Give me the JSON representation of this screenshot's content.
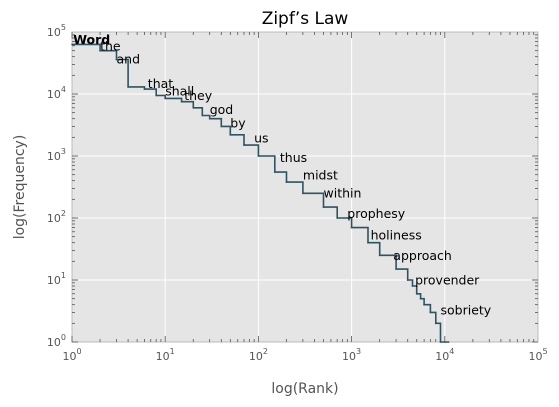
{
  "chart_data": {
    "type": "line",
    "title": "Zipf’s Law",
    "xlabel": "log(Rank)",
    "ylabel": "log(Frequency)",
    "xscale": "log",
    "yscale": "log",
    "xlim": [
      1,
      100000
    ],
    "ylim": [
      1,
      100000
    ],
    "grid": true,
    "background": "#e5e5e5",
    "grid_color": "#ffffff",
    "line_color": "#2c5463",
    "x_ticks": [
      {
        "base": "10",
        "exp": "0",
        "value": 1
      },
      {
        "base": "10",
        "exp": "1",
        "value": 10
      },
      {
        "base": "10",
        "exp": "2",
        "value": 100
      },
      {
        "base": "10",
        "exp": "3",
        "value": 1000
      },
      {
        "base": "10",
        "exp": "4",
        "value": 10000
      },
      {
        "base": "10",
        "exp": "5",
        "value": 100000
      }
    ],
    "y_ticks": [
      {
        "base": "10",
        "exp": "0",
        "value": 1
      },
      {
        "base": "10",
        "exp": "1",
        "value": 10
      },
      {
        "base": "10",
        "exp": "2",
        "value": 100
      },
      {
        "base": "10",
        "exp": "3",
        "value": 1000
      },
      {
        "base": "10",
        "exp": "4",
        "value": 10000
      },
      {
        "base": "10",
        "exp": "5",
        "value": 100000
      }
    ],
    "series": [
      {
        "x": [
          1,
          2,
          3,
          4,
          6,
          8,
          10,
          15,
          20,
          25,
          30,
          40,
          50,
          70,
          100,
          150,
          200,
          300,
          500,
          700,
          1000,
          1500,
          2000,
          3000,
          4000,
          4500,
          5000,
          5500,
          6000,
          7000,
          8000,
          9000,
          10000,
          11000
        ],
        "y": [
          63000,
          50000,
          36000,
          13000,
          12000,
          9500,
          8500,
          7500,
          6000,
          4500,
          4000,
          3000,
          2200,
          1500,
          1000,
          550,
          380,
          250,
          150,
          100,
          70,
          40,
          25,
          15,
          10,
          8,
          6,
          5,
          4,
          3,
          2,
          1,
          1,
          1
        ]
      }
    ],
    "annotations": [
      {
        "text": "Word",
        "x": 1.03,
        "y": 64000,
        "header": true
      },
      {
        "text": "the",
        "x": 2.0,
        "y": 50000
      },
      {
        "text": "and",
        "x": 3.0,
        "y": 31000
      },
      {
        "text": "that",
        "x": 6.5,
        "y": 12500
      },
      {
        "text": "shall",
        "x": 10,
        "y": 9500
      },
      {
        "text": "they",
        "x": 16,
        "y": 8000
      },
      {
        "text": "god",
        "x": 30,
        "y": 4800
      },
      {
        "text": "by",
        "x": 50,
        "y": 2900
      },
      {
        "text": "us",
        "x": 90,
        "y": 1650
      },
      {
        "text": "thus",
        "x": 170,
        "y": 800
      },
      {
        "text": "midst",
        "x": 300,
        "y": 420
      },
      {
        "text": "within",
        "x": 500,
        "y": 215
      },
      {
        "text": "prophesy",
        "x": 900,
        "y": 100
      },
      {
        "text": "holiness",
        "x": 1600,
        "y": 45
      },
      {
        "text": "approach",
        "x": 2800,
        "y": 21
      },
      {
        "text": "provender",
        "x": 4800,
        "y": 8.5
      },
      {
        "text": "sobriety",
        "x": 9000,
        "y": 2.8
      }
    ]
  }
}
